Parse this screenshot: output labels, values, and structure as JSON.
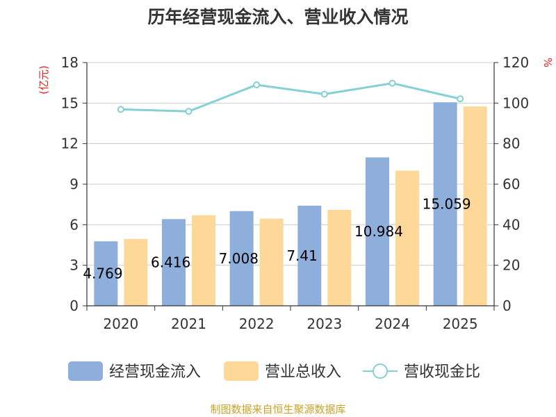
{
  "chart_data": {
    "type": "bar",
    "title": "历年经营现金流入、营业收入情况",
    "categories": [
      "2020",
      "2021",
      "2022",
      "2023",
      "2024",
      "2025"
    ],
    "y_left": {
      "unit": "(亿元)",
      "ylim": [
        0,
        18
      ],
      "ticks": [
        "0",
        "3",
        "6",
        "9",
        "12",
        "15",
        "18"
      ]
    },
    "y_right": {
      "unit": "%",
      "ylim": [
        0,
        120
      ],
      "ticks": [
        "0",
        "20",
        "40",
        "60",
        "80",
        "100",
        "120"
      ]
    },
    "series": [
      {
        "name": "经营现金流入",
        "type": "bar",
        "axis": "left",
        "color": "#8eaedb",
        "values": [
          4.769,
          6.416,
          7.008,
          7.41,
          10.984,
          15.059
        ],
        "labels": [
          "4.769",
          "6.416",
          "7.008",
          "7.41",
          "10.984",
          "15.059"
        ]
      },
      {
        "name": "营业总收入",
        "type": "bar",
        "axis": "left",
        "color": "#fed898",
        "values": [
          4.95,
          6.7,
          6.45,
          7.1,
          10.0,
          14.75
        ]
      },
      {
        "name": "营收现金比",
        "type": "line",
        "axis": "right",
        "color": "#84d0d4",
        "values": [
          96.9,
          95.9,
          109.0,
          104.4,
          109.8,
          102.1
        ]
      }
    ],
    "grid": true,
    "legend_position": "bottom"
  },
  "footer": {
    "source": "制图数据来自恒生聚源数据库"
  }
}
